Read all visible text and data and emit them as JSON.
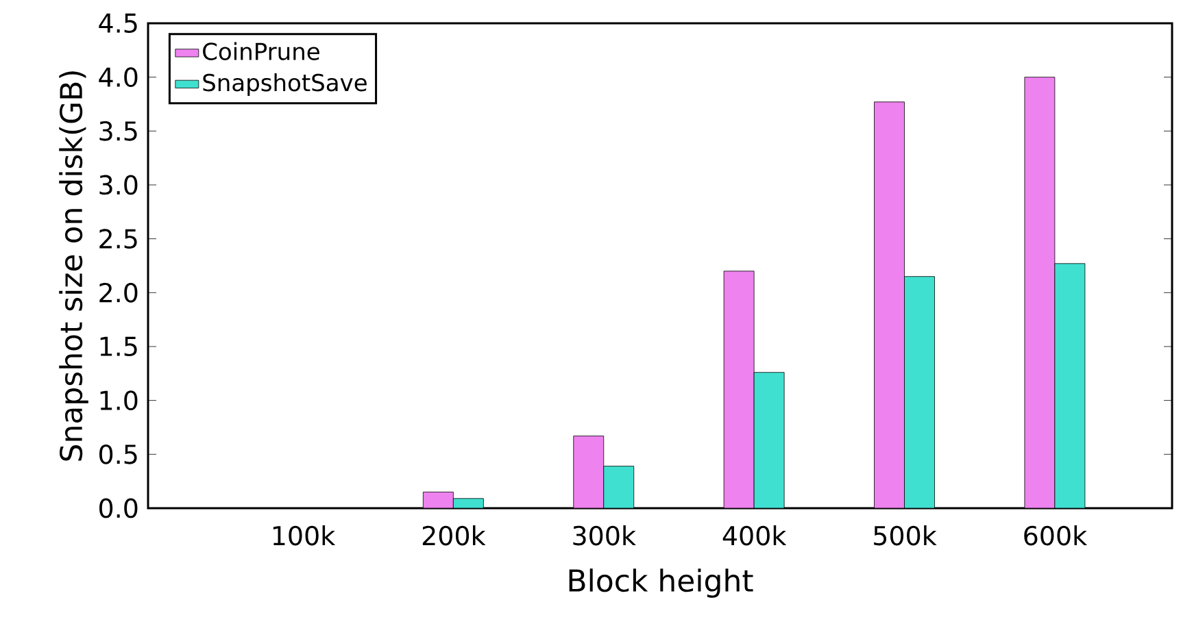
{
  "chart_data": {
    "type": "bar",
    "xlabel": "Block height",
    "ylabel": "Snapshot size on disk(GB)",
    "categories": [
      "100k",
      "200k",
      "300k",
      "400k",
      "500k",
      "600k"
    ],
    "series": [
      {
        "name": "CoinPrune",
        "color": "#ee82ee",
        "values": [
          null,
          0.15,
          0.67,
          2.2,
          3.77,
          4.0
        ]
      },
      {
        "name": "SnapshotSave",
        "color": "#40e0d0",
        "values": [
          null,
          0.09,
          0.39,
          1.26,
          2.15,
          2.27
        ]
      }
    ],
    "ylim": [
      0,
      4.5
    ],
    "yticks": [
      {
        "value": 0,
        "label": "0.0"
      },
      {
        "value": 0.5,
        "label": "0.5"
      },
      {
        "value": 1,
        "label": "1.0"
      },
      {
        "value": 1.5,
        "label": "1.5"
      },
      {
        "value": 2,
        "label": "2.0"
      },
      {
        "value": 2.5,
        "label": "2.5"
      },
      {
        "value": 3,
        "label": "3.0"
      },
      {
        "value": 3.5,
        "label": "3.5"
      },
      {
        "value": 4,
        "label": "4.0"
      },
      {
        "value": 4.5,
        "label": "4.5"
      }
    ],
    "grid": false,
    "legend": "top left"
  }
}
